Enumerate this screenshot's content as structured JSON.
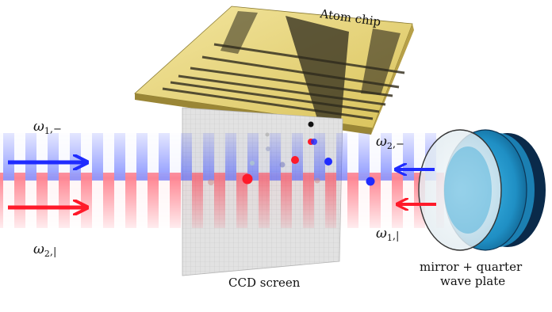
{
  "labels": {
    "chip": "Atom chip",
    "ccd": "CCD screen",
    "mirror_line1": "mirror + quarter",
    "mirror_line2": "wave plate"
  },
  "beams": {
    "in_top": {
      "omega": "ω",
      "sub": "1",
      "pol": ",−"
    },
    "in_bottom": {
      "omega": "ω",
      "sub": "2",
      "pol": ",|"
    },
    "ret_top": {
      "omega": "ω",
      "sub": "2",
      "pol": ",−"
    },
    "ret_bottom": {
      "omega": "ω",
      "sub": "1",
      "pol": ",|"
    }
  },
  "colors": {
    "blue": "#1f2bff",
    "red": "#ff1a2a",
    "gold": "#e7d57a",
    "wave_plate": "#2aa0d4"
  }
}
